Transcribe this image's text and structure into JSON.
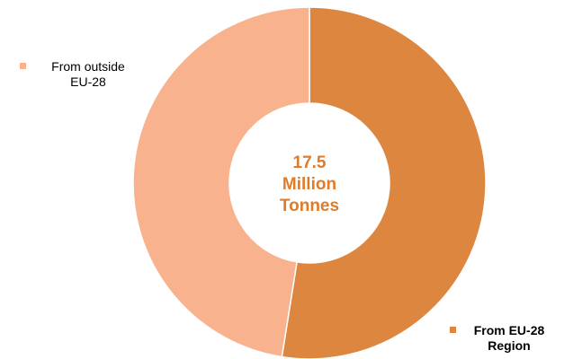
{
  "chart_data": {
    "type": "pie",
    "variant": "donut",
    "center_text": [
      "17.5",
      "Million",
      "Tonnes"
    ],
    "slices": [
      {
        "name": "From EU-28 Region",
        "value": 52.5,
        "color": "#dd8640"
      },
      {
        "name": "From outside EU-28",
        "value": 47.5,
        "color": "#f8b38e"
      }
    ],
    "legend": [
      {
        "lines": [
          "From outside",
          "EU-28"
        ],
        "color": "#f8b38e",
        "bold": false
      },
      {
        "lines": [
          "From EU-28",
          "Region"
        ],
        "color": "#dd8640",
        "bold": true
      }
    ],
    "colors": {
      "center_text": "#e07b2a",
      "separator": "#ffffff"
    }
  }
}
